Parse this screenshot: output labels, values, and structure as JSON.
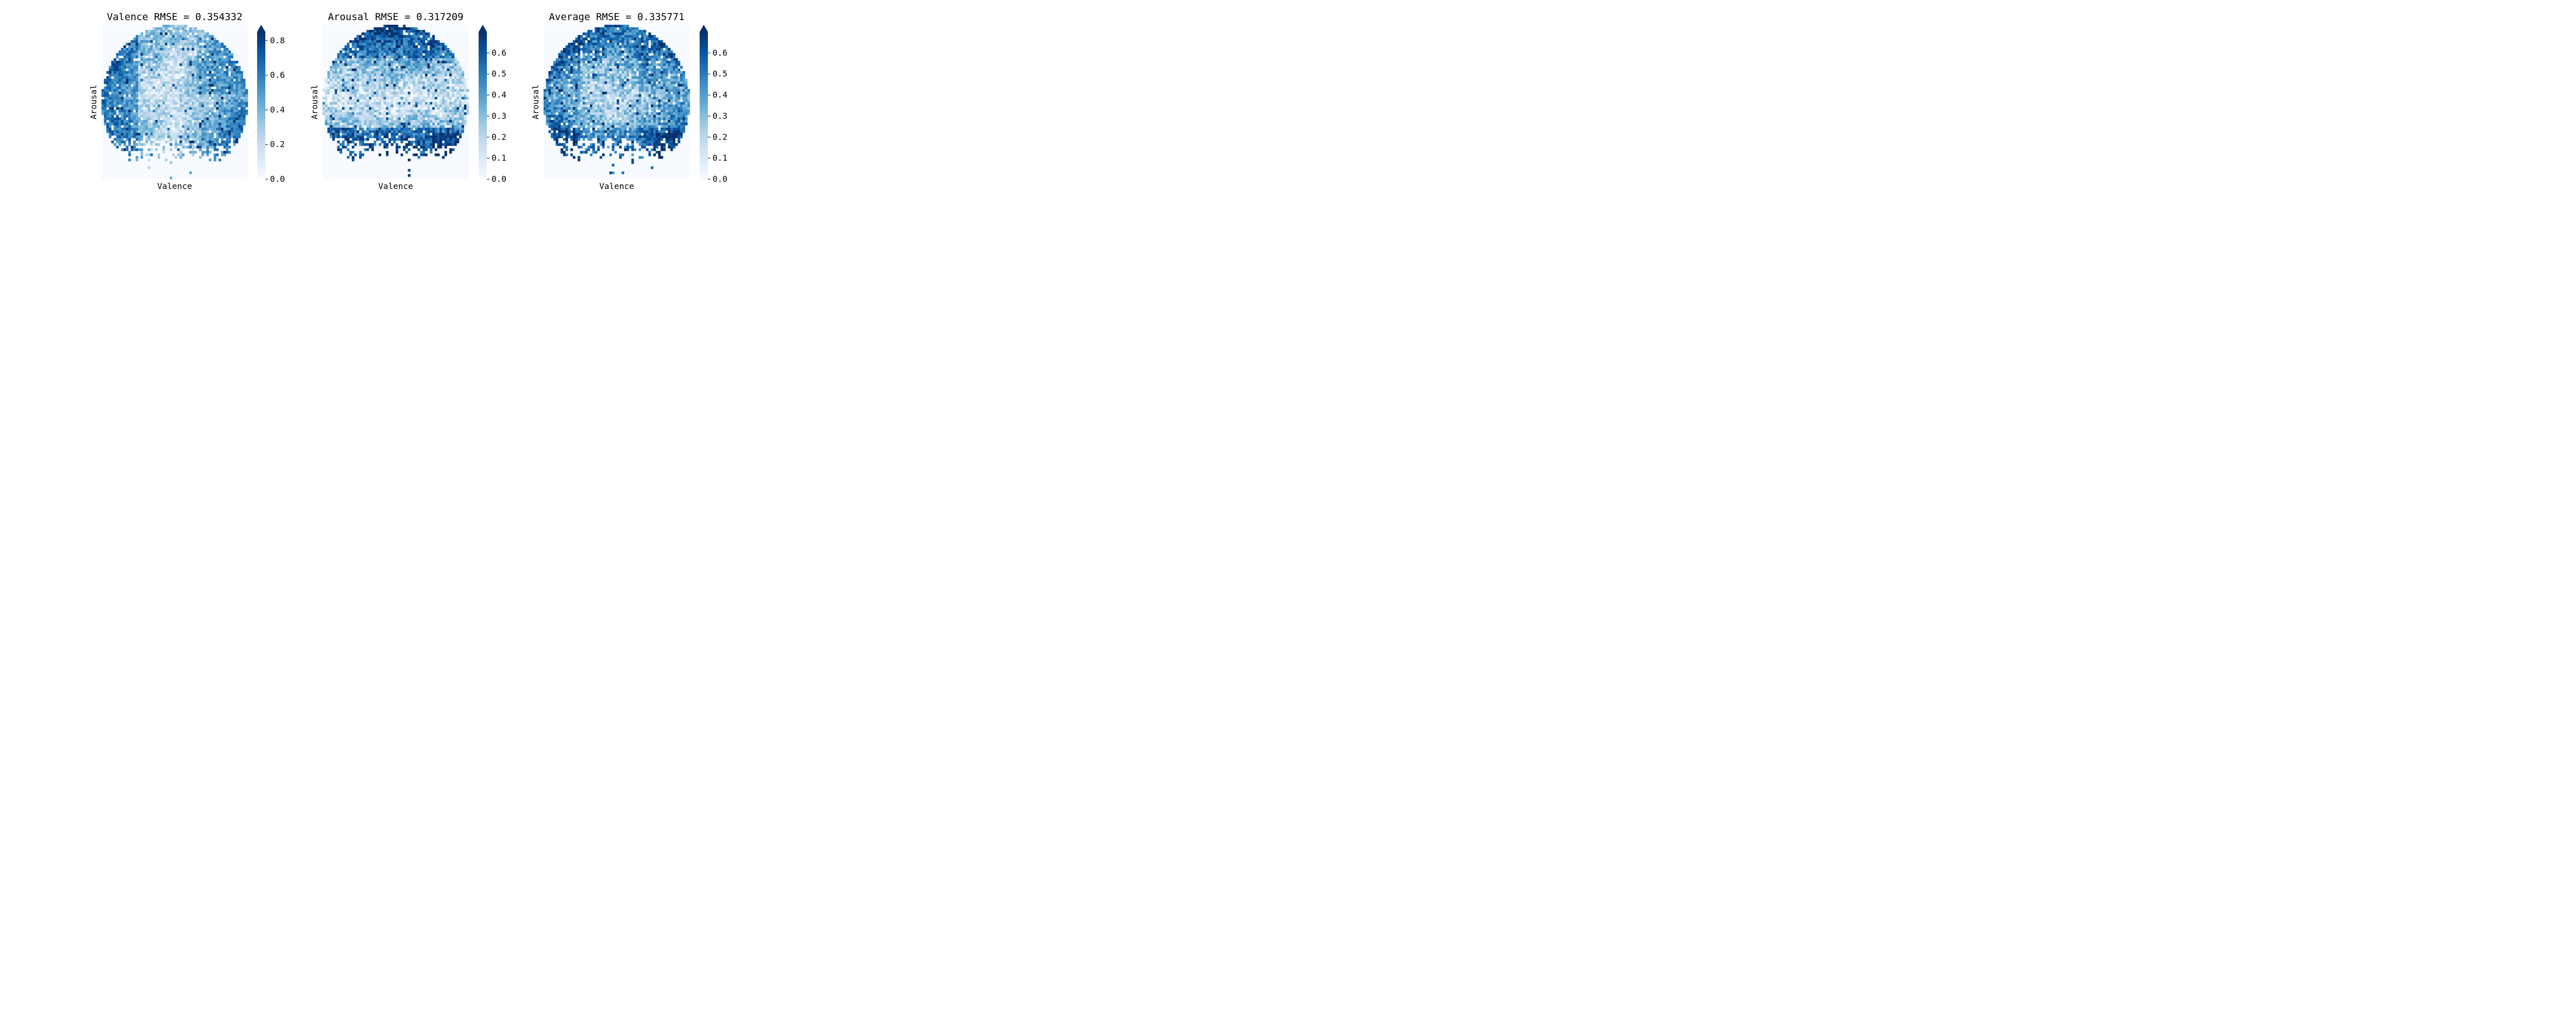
{
  "colormap": {
    "name": "Blues",
    "stops": [
      "#f7fbff",
      "#deebf7",
      "#c6dbef",
      "#9ecae1",
      "#6baed6",
      "#4292c6",
      "#2171b5",
      "#08519c",
      "#08306b"
    ],
    "extend": "max"
  },
  "chart_data": [
    {
      "type": "heatmap",
      "title": "Valence RMSE = 0.354332",
      "xlabel": "Valence",
      "ylabel": "Arousal",
      "grid": false,
      "grid_size": 60,
      "colorbar": {
        "vmin": 0.0,
        "vmax": 0.85,
        "ticks": [
          "0.0",
          "0.2",
          "0.4",
          "0.6",
          "0.8"
        ]
      },
      "pattern": "valence"
    },
    {
      "type": "heatmap",
      "title": "Arousal RMSE = 0.317209",
      "xlabel": "Valence",
      "ylabel": "Arousal",
      "grid": false,
      "grid_size": 60,
      "colorbar": {
        "vmin": 0.0,
        "vmax": 0.7,
        "ticks": [
          "0.0",
          "0.1",
          "0.2",
          "0.3",
          "0.4",
          "0.5",
          "0.6"
        ]
      },
      "pattern": "arousal"
    },
    {
      "type": "heatmap",
      "title": "Average RMSE = 0.335771",
      "xlabel": "Valence",
      "ylabel": "Arousal",
      "grid": false,
      "grid_size": 60,
      "colorbar": {
        "vmin": 0.0,
        "vmax": 0.7,
        "ticks": [
          "0.0",
          "0.1",
          "0.2",
          "0.3",
          "0.4",
          "0.5",
          "0.6"
        ]
      },
      "pattern": "average"
    }
  ]
}
